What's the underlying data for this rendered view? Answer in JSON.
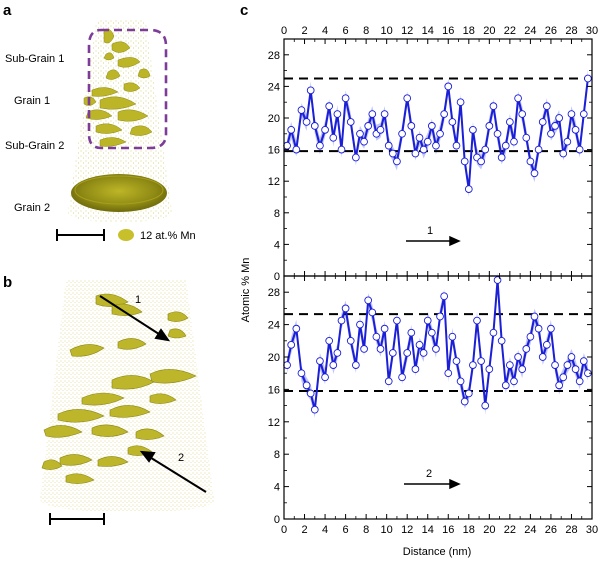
{
  "panel_a": {
    "letter": "a",
    "labels": [
      "Sub-Grain 1",
      "Grain 1",
      "Sub-Grain 2",
      "Grain 2"
    ],
    "legend": "12 at.% Mn",
    "colors": {
      "iso": "#c8c02a",
      "iso_dark": "#8f8a12",
      "dots": "#d9d46a",
      "box": "#7d3c98"
    }
  },
  "panel_b": {
    "letter": "b",
    "arrow_labels": [
      "1",
      "2"
    ]
  },
  "panel_c": {
    "letter": "c",
    "chart_data": [
      {
        "type": "line",
        "arrow_label": "1",
        "xlim": [
          0,
          30
        ],
        "ylim": [
          0,
          30
        ],
        "xticks": [
          0,
          2,
          4,
          6,
          8,
          10,
          12,
          14,
          16,
          18,
          20,
          22,
          24,
          26,
          28,
          30
        ],
        "yticks": [
          0,
          4,
          8,
          12,
          16,
          20,
          24,
          28
        ],
        "reference_lines": [
          25,
          15.8
        ],
        "x": [
          0.3,
          0.7,
          1.2,
          1.7,
          2.2,
          2.6,
          3.0,
          3.5,
          4.0,
          4.4,
          4.8,
          5.2,
          5.6,
          6.0,
          6.5,
          7.0,
          7.4,
          7.8,
          8.2,
          8.6,
          9.0,
          9.4,
          9.8,
          10.2,
          10.6,
          11.0,
          11.5,
          12.0,
          12.4,
          12.8,
          13.2,
          13.6,
          14.0,
          14.4,
          14.8,
          15.2,
          15.6,
          16.0,
          16.4,
          16.8,
          17.2,
          17.6,
          18.0,
          18.4,
          18.8,
          19.2,
          19.6,
          20.0,
          20.4,
          20.8,
          21.2,
          21.6,
          22.0,
          22.4,
          22.8,
          23.2,
          23.6,
          24.0,
          24.4,
          24.8,
          25.2,
          25.6,
          26.0,
          26.4,
          26.8,
          27.2,
          27.6,
          28.0,
          28.4,
          28.8,
          29.2,
          29.6
        ],
        "y": [
          16.5,
          18.5,
          16.0,
          21.0,
          19.5,
          23.5,
          19.0,
          16.5,
          18.5,
          21.5,
          17.5,
          20.5,
          16.0,
          22.5,
          19.5,
          15.0,
          18.0,
          17.0,
          19.0,
          20.5,
          18.0,
          18.5,
          20.5,
          16.5,
          15.5,
          14.5,
          18.0,
          22.5,
          19.0,
          15.5,
          17.5,
          16.0,
          17.0,
          19.0,
          16.5,
          18.0,
          20.5,
          24.0,
          19.5,
          16.5,
          22.0,
          14.5,
          11.0,
          18.5,
          15.0,
          14.5,
          16.0,
          19.0,
          21.5,
          18.0,
          15.0,
          16.5,
          19.5,
          17.0,
          22.5,
          20.5,
          17.5,
          14.5,
          13.0,
          16.0,
          19.5,
          21.5,
          18.0,
          19.0,
          20.0,
          15.5,
          17.0,
          20.5,
          18.5,
          16.0,
          20.5,
          25.0
        ],
        "xlabel": "",
        "ylabel": ""
      },
      {
        "type": "line",
        "arrow_label": "2",
        "xlim": [
          0,
          30
        ],
        "ylim": [
          0,
          30
        ],
        "xticks": [
          0,
          2,
          4,
          6,
          8,
          10,
          12,
          14,
          16,
          18,
          20,
          22,
          24,
          26,
          28,
          30
        ],
        "yticks": [
          0,
          4,
          8,
          12,
          16,
          20,
          24,
          28
        ],
        "reference_lines": [
          25.3,
          15.8
        ],
        "x": [
          0.3,
          0.7,
          1.2,
          1.7,
          2.2,
          2.6,
          3.0,
          3.5,
          4.0,
          4.4,
          4.8,
          5.2,
          5.6,
          6.0,
          6.5,
          7.0,
          7.4,
          7.8,
          8.2,
          8.6,
          9.0,
          9.4,
          9.8,
          10.2,
          10.6,
          11.0,
          11.5,
          12.0,
          12.4,
          12.8,
          13.2,
          13.6,
          14.0,
          14.4,
          14.8,
          15.2,
          15.6,
          16.0,
          16.4,
          16.8,
          17.2,
          17.6,
          18.0,
          18.4,
          18.8,
          19.2,
          19.6,
          20.0,
          20.4,
          20.8,
          21.2,
          21.6,
          22.0,
          22.4,
          22.8,
          23.2,
          23.6,
          24.0,
          24.4,
          24.8,
          25.2,
          25.6,
          26.0,
          26.4,
          26.8,
          27.2,
          27.6,
          28.0,
          28.4,
          28.8,
          29.2,
          29.6
        ],
        "y": [
          19.0,
          21.5,
          23.5,
          18.0,
          16.5,
          15.5,
          13.5,
          19.5,
          17.5,
          22.0,
          19.0,
          20.5,
          24.5,
          26.0,
          22.0,
          19.0,
          24.0,
          21.0,
          27.0,
          25.5,
          22.5,
          21.0,
          23.5,
          17.0,
          20.5,
          24.5,
          17.5,
          20.5,
          23.0,
          18.5,
          21.5,
          20.5,
          24.5,
          23.0,
          21.0,
          25.0,
          27.5,
          18.0,
          22.5,
          19.5,
          17.0,
          14.5,
          15.5,
          19.0,
          24.5,
          19.5,
          14.0,
          18.5,
          23.0,
          29.5,
          22.0,
          16.5,
          19.0,
          17.0,
          20.0,
          18.5,
          21.0,
          22.5,
          25.0,
          23.5,
          20.0,
          21.5,
          23.5,
          19.0,
          16.5,
          17.5,
          19.0,
          20.0,
          18.5,
          17.0,
          19.5,
          18.0
        ],
        "xlabel": "Distance (nm)",
        "ylabel": ""
      }
    ],
    "shared_ylabel": "Atomic % Mn",
    "colors": {
      "line": "#1b1fd6",
      "band": "#7d82ef",
      "band_light": "#b3b6f6",
      "marker_fill": "#ffffff",
      "marker_edge": "#1b1fd6",
      "ref_line": "#000000"
    }
  }
}
